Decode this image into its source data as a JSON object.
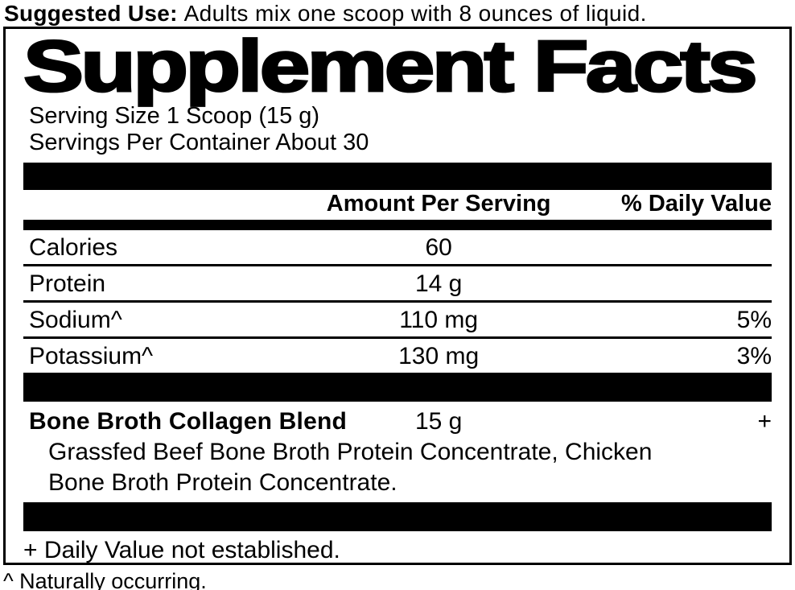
{
  "suggested_use": {
    "label": "Suggested Use:",
    "text": "Adults mix one scoop with 8 ounces of liquid."
  },
  "panel": {
    "title": "Supplement Facts",
    "serving_size": "Serving Size 1 Scoop (15 g)",
    "servings_per_container": "Servings Per Container About 30",
    "columns": {
      "amount": "Amount Per Serving",
      "daily_value": "% Daily Value"
    },
    "nutrients": [
      {
        "name": "Calories",
        "amount": "60",
        "daily_value": ""
      },
      {
        "name": "Protein",
        "amount": "14 g",
        "daily_value": ""
      },
      {
        "name": "Sodium^",
        "amount": "110 mg",
        "daily_value": "5%"
      },
      {
        "name": "Potassium^",
        "amount": "130 mg",
        "daily_value": "3%"
      }
    ],
    "blend": {
      "name": "Bone Broth Collagen Blend",
      "amount": "15 g",
      "daily_value": "+",
      "ingredients_line1": "Grassfed Beef Bone Broth Protein Concentrate, Chicken",
      "ingredients_line2": "Bone Broth Protein Concentrate."
    },
    "footnote": "+ Daily Value not established."
  },
  "footer_note": "^ Naturally occurring.",
  "colors": {
    "ink": "#000000",
    "background": "#ffffff"
  }
}
